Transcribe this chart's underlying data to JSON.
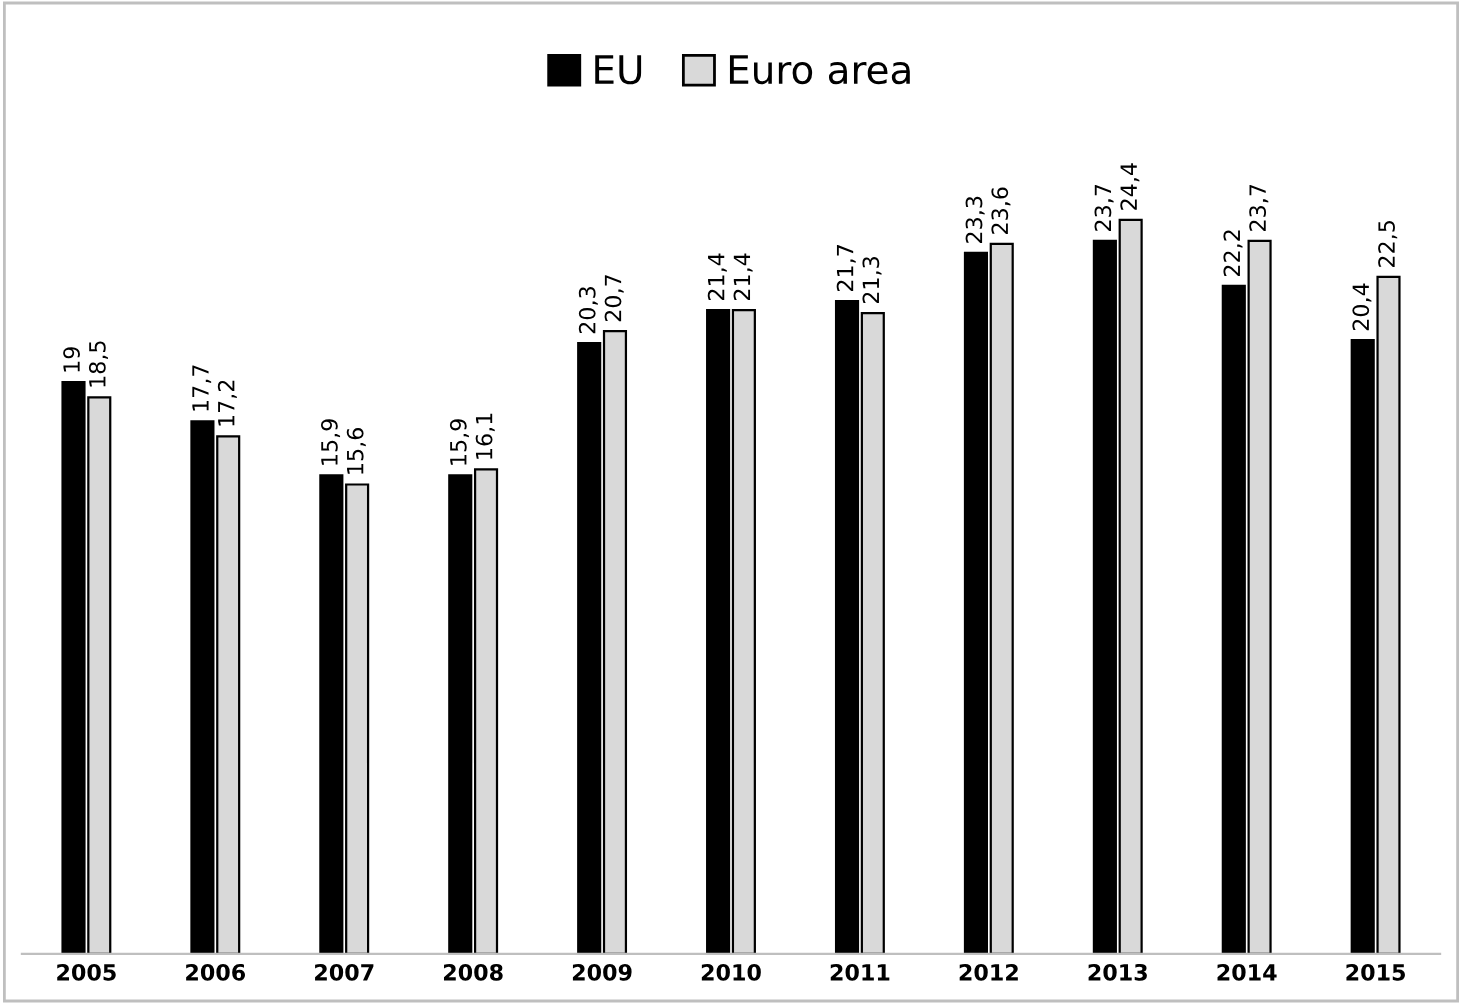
{
  "chart_data": {
    "type": "bar",
    "categories": [
      "2005",
      "2006",
      "2007",
      "2008",
      "2009",
      "2010",
      "2011",
      "2012",
      "2013",
      "2014",
      "2015"
    ],
    "series": [
      {
        "name": "EU",
        "color": "#000000",
        "values": [
          19,
          17.7,
          15.9,
          15.9,
          20.3,
          21.4,
          21.7,
          23.3,
          23.7,
          22.2,
          20.4
        ],
        "value_labels": [
          "19",
          "17,7",
          "15,9",
          "15,9",
          "20,3",
          "21,4",
          "21,7",
          "23,3",
          "23,7",
          "22,2",
          "20,4"
        ]
      },
      {
        "name": "Euro area",
        "color": "#d9d9d9",
        "values": [
          18.5,
          17.2,
          15.6,
          16.1,
          20.7,
          21.4,
          21.3,
          23.6,
          24.4,
          23.7,
          22.5
        ],
        "value_labels": [
          "18,5",
          "17,2",
          "15,6",
          "16,1",
          "20,7",
          "21,4",
          "21,3",
          "23,6",
          "24,4",
          "23,7",
          "22,5"
        ]
      }
    ],
    "legend": "top",
    "grid": false
  }
}
